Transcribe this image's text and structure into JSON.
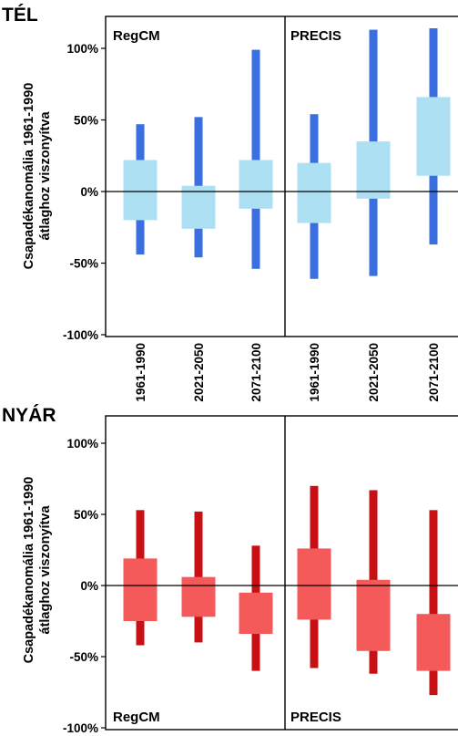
{
  "chart_data": [
    {
      "type": "box",
      "title": "TÉL",
      "ylabel": [
        "Csapadékanomália 1961-1990",
        "átlaghoz viszonyítva"
      ],
      "ylim": [
        -100,
        120
      ],
      "yticks": [
        100,
        50,
        0,
        -50,
        -100
      ],
      "ytick_labels": [
        "100%",
        "50%",
        "0%",
        "-50%",
        "-100%"
      ],
      "categories": [
        "1961-1990",
        "2021-2050",
        "2071-2100",
        "1961-1990",
        "2021-2050",
        "2071-2100"
      ],
      "panels": [
        {
          "name": "RegCM",
          "boxes": [
            {
              "whisker_low": -44,
              "box_low": -20,
              "box_high": 22,
              "whisker_high": 47
            },
            {
              "whisker_low": -46,
              "box_low": -26,
              "box_high": 4,
              "whisker_high": 52
            },
            {
              "whisker_low": -54,
              "box_low": -12,
              "box_high": 22,
              "whisker_high": 99
            }
          ]
        },
        {
          "name": "PRECIS",
          "boxes": [
            {
              "whisker_low": -61,
              "box_low": -22,
              "box_high": 20,
              "whisker_high": 54
            },
            {
              "whisker_low": -59,
              "box_low": -5,
              "box_high": 35,
              "whisker_high": 113
            },
            {
              "whisker_low": -37,
              "box_low": 11,
              "box_high": 66,
              "whisker_high": 114
            }
          ]
        }
      ],
      "colors": {
        "box": "#aee0f3",
        "whisker": "#3a6fe0"
      }
    },
    {
      "type": "box",
      "title": "NYÁR",
      "ylabel": [
        "Csapadékanomália 1961-1990",
        "átlaghoz viszonyítva"
      ],
      "ylim": [
        -100,
        120
      ],
      "yticks": [
        100,
        50,
        0,
        -50,
        -100
      ],
      "ytick_labels": [
        "100%",
        "50%",
        "0%",
        "-50%",
        "-100%"
      ],
      "panels": [
        {
          "name": "RegCM",
          "boxes": [
            {
              "whisker_low": -42,
              "box_low": -25,
              "box_high": 19,
              "whisker_high": 53
            },
            {
              "whisker_low": -40,
              "box_low": -22,
              "box_high": 6,
              "whisker_high": 52
            },
            {
              "whisker_low": -60,
              "box_low": -34,
              "box_high": -5,
              "whisker_high": 28
            }
          ]
        },
        {
          "name": "PRECIS",
          "boxes": [
            {
              "whisker_low": -58,
              "box_low": -24,
              "box_high": 26,
              "whisker_high": 70
            },
            {
              "whisker_low": -62,
              "box_low": -46,
              "box_high": 4,
              "whisker_high": 67
            },
            {
              "whisker_low": -77,
              "box_low": -60,
              "box_high": -20,
              "whisker_high": 53
            }
          ]
        }
      ],
      "colors": {
        "box": "#f55a5a",
        "whisker": "#c80f14"
      }
    }
  ]
}
